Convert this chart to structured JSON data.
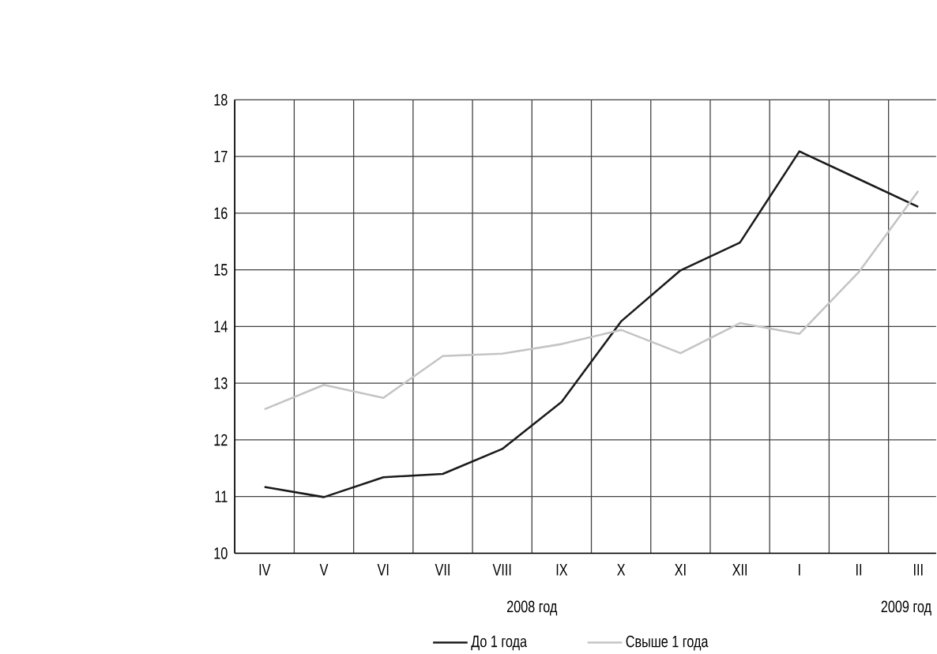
{
  "chart_data": {
    "type": "line",
    "categories": [
      "IV",
      "V",
      "VI",
      "VII",
      "VIII",
      "IX",
      "X",
      "XI",
      "XII",
      "I",
      "II",
      "III"
    ],
    "series": [
      {
        "name": "До 1 года",
        "color": "#1a1a1a",
        "values": [
          11.17,
          10.99,
          11.34,
          11.4,
          11.84,
          12.67,
          14.09,
          14.99,
          15.48,
          17.09,
          16.6,
          16.11
        ]
      },
      {
        "name": "Свыше 1 года",
        "color": "#c4c4c4",
        "values": [
          12.54,
          12.97,
          12.74,
          13.48,
          13.52,
          13.69,
          13.94,
          13.53,
          14.06,
          13.87,
          14.96,
          16.39
        ]
      }
    ],
    "ylim": [
      10,
      18
    ],
    "yticks": [
      10,
      11,
      12,
      13,
      14,
      15,
      16,
      17,
      18
    ],
    "annotations": [
      "2008 год",
      "2009 год"
    ],
    "grid": true,
    "legend": "bottom",
    "marker": "none",
    "line_style": "solid"
  }
}
